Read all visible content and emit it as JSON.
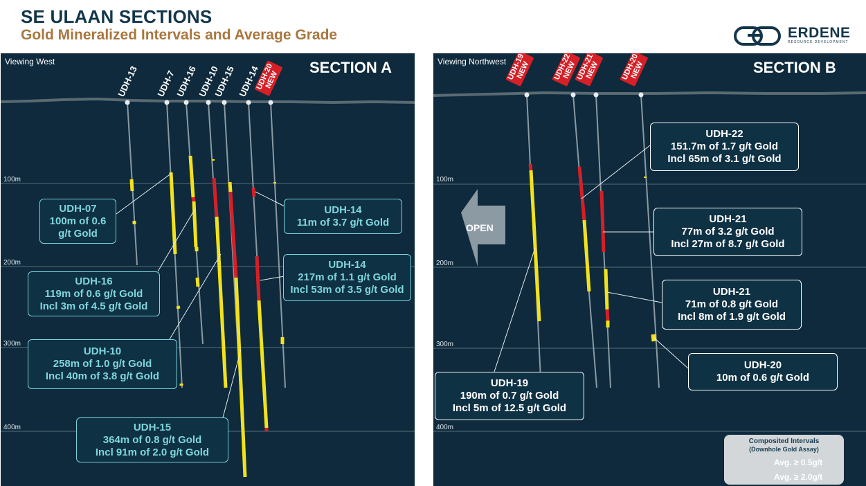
{
  "header": {
    "title": "SE ULAAN SECTIONS",
    "subtitle": "Gold Mineralized Intervals and Average Grade",
    "logo_text": "ERDENE",
    "logo_sub": "RESOURCE DEVELOPMENT"
  },
  "colors": {
    "background": "#0e2a3c",
    "yellow": "#f2e21d",
    "red": "#d61f26",
    "callout_border_cyan": "#7bd4dc",
    "title": "#13364a",
    "subtitle": "#a9773f"
  },
  "section_a": {
    "view": "Viewing West",
    "title": "SECTION A",
    "depths": [
      "100m",
      "200m",
      "300m",
      "400m"
    ],
    "holes": [
      {
        "name": "UDH-13",
        "new": false
      },
      {
        "name": "UDH-7",
        "new": false
      },
      {
        "name": "UDH-16",
        "new": false
      },
      {
        "name": "UDH-10",
        "new": false
      },
      {
        "name": "UDH-15",
        "new": false
      },
      {
        "name": "UDH-14",
        "new": false
      },
      {
        "name": "UDH-20",
        "new": true,
        "tag": "NEW"
      }
    ],
    "callouts": [
      {
        "id": "udh07",
        "lines": [
          "UDH-07",
          "100m of 0.6",
          "g/t Gold"
        ]
      },
      {
        "id": "udh16",
        "lines": [
          "UDH-16",
          "119m of 0.6 g/t Gold",
          "Incl 3m of 4.5 g/t Gold"
        ]
      },
      {
        "id": "udh10",
        "lines": [
          "UDH-10",
          "258m of 1.0 g/t Gold",
          "Incl 40m of 3.8 g/t Gold"
        ]
      },
      {
        "id": "udh15",
        "lines": [
          "UDH-15",
          "364m of 0.8 g/t Gold",
          "Incl 91m of 2.0 g/t Gold"
        ]
      },
      {
        "id": "udh14a",
        "lines": [
          "UDH-14",
          "11m of 3.7 g/t Gold"
        ]
      },
      {
        "id": "udh14b",
        "lines": [
          "UDH-14",
          "217m of 1.1 g/t Gold",
          "Incl 53m of 3.5 g/t Gold"
        ]
      }
    ]
  },
  "section_b": {
    "view": "Viewing Northwest",
    "title": "SECTION B",
    "depths": [
      "100m",
      "200m",
      "300m",
      "400m"
    ],
    "open_label": "OPEN",
    "holes": [
      {
        "name": "UDH-19",
        "new": true,
        "tag": "NEW"
      },
      {
        "name": "UDH-22",
        "new": true,
        "tag": "NEW"
      },
      {
        "name": "UDH-21",
        "new": true,
        "tag": "NEW"
      },
      {
        "name": "UDH-20",
        "new": true,
        "tag": "NEW"
      }
    ],
    "callouts": [
      {
        "id": "udh22",
        "lines": [
          "UDH-22",
          "151.7m of 1.7 g/t Gold",
          "Incl 65m of 3.1 g/t Gold"
        ]
      },
      {
        "id": "udh21a",
        "lines": [
          "UDH-21",
          "77m of 3.2 g/t Gold",
          "Incl 27m of 8.7 g/t Gold"
        ]
      },
      {
        "id": "udh21b",
        "lines": [
          "UDH-21",
          "71m of 0.8 g/t Gold",
          "Incl 8m of 1.9 g/t Gold"
        ]
      },
      {
        "id": "udh20",
        "lines": [
          "UDH-20",
          "10m of 0.6 g/t Gold"
        ]
      },
      {
        "id": "udh19",
        "lines": [
          "UDH-19",
          "190m of 0.7 g/t Gold",
          "Incl 5m of 12.5 g/t Gold"
        ]
      }
    ],
    "legend": {
      "title": "Composited Intervals",
      "subtitle": "(Downhole Gold Assay)",
      "items": [
        {
          "label": "Avg. ≥ 0.5g/t",
          "color": "#f2e21d"
        },
        {
          "label": "Avg. ≥ 2.0g/t",
          "color": "#d61f26"
        }
      ]
    }
  }
}
